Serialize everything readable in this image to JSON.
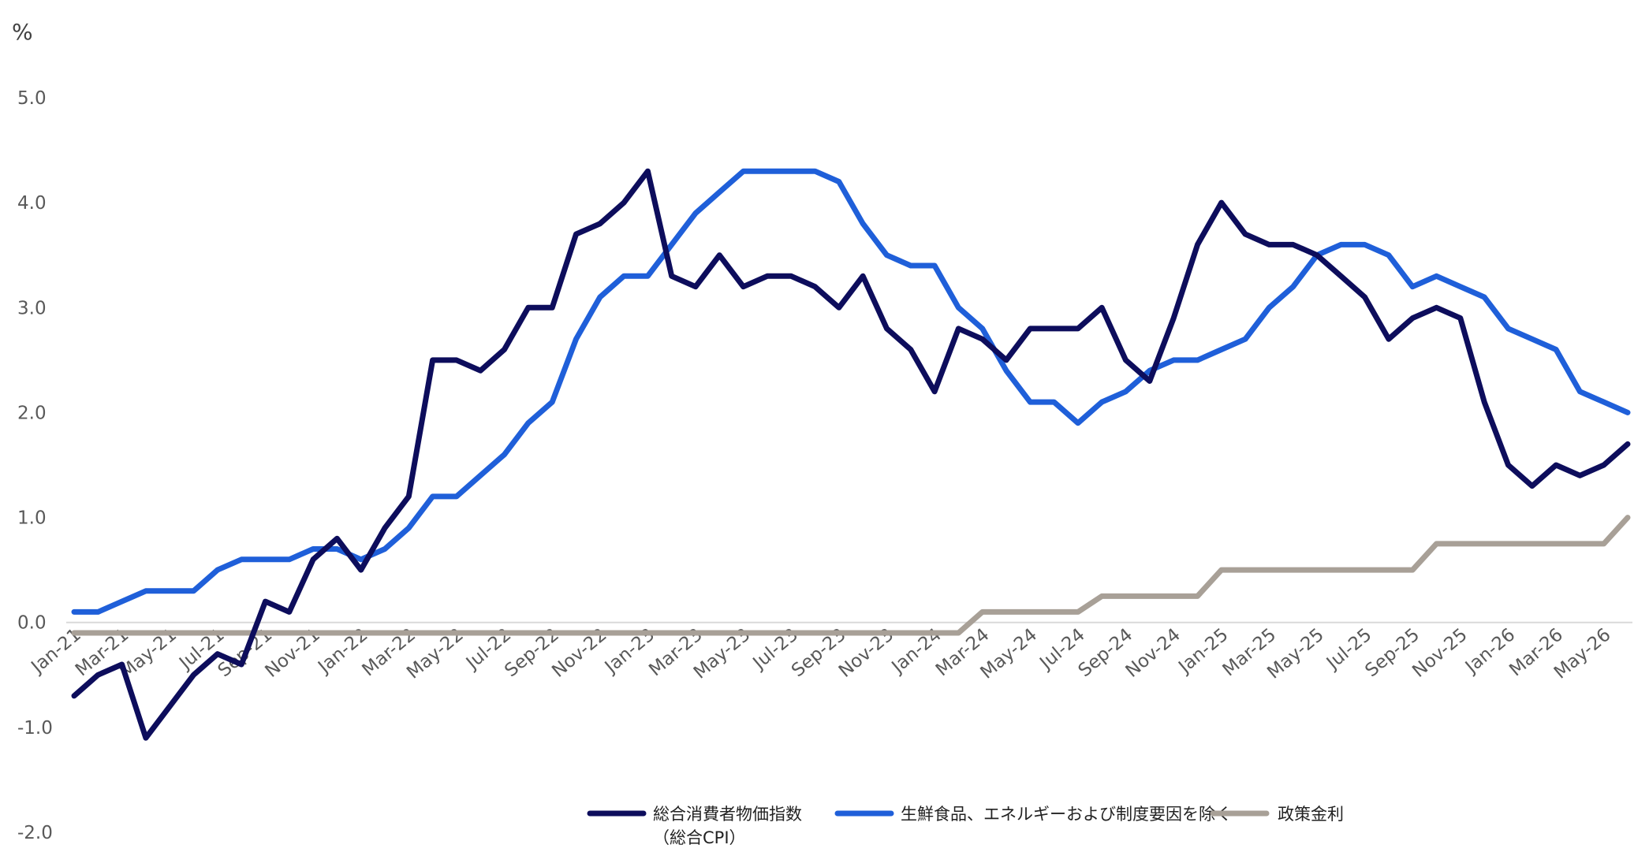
{
  "chart_data": {
    "type": "line",
    "unit_label": "%",
    "ylim": [
      -2.0,
      5.0
    ],
    "yticks": [
      "5.0",
      "4.0",
      "3.0",
      "2.0",
      "1.0",
      "0.0",
      "-1.0",
      "-2.0"
    ],
    "x": [
      "Jan-21",
      "Feb-21",
      "Mar-21",
      "Apr-21",
      "May-21",
      "Jun-21",
      "Jul-21",
      "Aug-21",
      "Sep-21",
      "Oct-21",
      "Nov-21",
      "Dec-21",
      "Jan-22",
      "Feb-22",
      "Mar-22",
      "Apr-22",
      "May-22",
      "Jun-22",
      "Jul-22",
      "Aug-22",
      "Sep-22",
      "Oct-22",
      "Nov-22",
      "Dec-22",
      "Jan-23",
      "Feb-23",
      "Mar-23",
      "Apr-23",
      "May-23",
      "Jun-23",
      "Jul-23",
      "Aug-23",
      "Sep-23",
      "Oct-23",
      "Nov-23",
      "Dec-23",
      "Jan-24",
      "Feb-24",
      "Mar-24",
      "Apr-24",
      "May-24",
      "Jun-24",
      "Jul-24",
      "Aug-24",
      "Sep-24",
      "Oct-24",
      "Nov-24",
      "Dec-24",
      "Jan-25",
      "Feb-25",
      "Mar-25",
      "Apr-25",
      "May-25",
      "Jun-25",
      "Jul-25",
      "Aug-25",
      "Sep-25",
      "Oct-25",
      "Nov-25",
      "Dec-25",
      "Jan-26",
      "Feb-26",
      "Mar-26",
      "Apr-26",
      "May-26",
      "Jun-26"
    ],
    "xtick_labels": [
      "Jan-21",
      "Mar-21",
      "May-21",
      "Jul-21",
      "Sep-21",
      "Nov-21",
      "Jan-22",
      "Mar-22",
      "May-22",
      "Jul-22",
      "Sep-22",
      "Nov-22",
      "Jan-23",
      "Mar-23",
      "May-23",
      "Jul-23",
      "Sep-23",
      "Nov-23",
      "Jan-24",
      "Mar-24",
      "May-24",
      "Jul-24",
      "Sep-24",
      "Nov-24",
      "Jan-25",
      "Mar-25",
      "May-25",
      "Jul-25",
      "Sep-25",
      "Nov-25",
      "Jan-26",
      "Mar-26",
      "May-26"
    ],
    "grid": false,
    "legend_position": "bottom-center",
    "series": [
      {
        "name": "総合消費者物価指数（総合CPI）",
        "legend_lines": [
          "総合消費者物価指数",
          "（総合CPI）"
        ],
        "color": "#0d0d5c",
        "values": [
          -0.7,
          -0.5,
          -0.4,
          -1.1,
          -0.8,
          -0.5,
          -0.3,
          -0.4,
          0.2,
          0.1,
          0.6,
          0.8,
          0.5,
          0.9,
          1.2,
          2.5,
          2.5,
          2.4,
          2.6,
          3.0,
          3.0,
          3.7,
          3.8,
          4.0,
          4.3,
          3.3,
          3.2,
          3.5,
          3.2,
          3.3,
          3.3,
          3.2,
          3.0,
          3.3,
          2.8,
          2.6,
          2.2,
          2.8,
          2.7,
          2.5,
          2.8,
          2.8,
          2.8,
          3.0,
          2.5,
          2.3,
          2.9,
          3.6,
          4.0,
          3.7,
          3.6,
          3.6,
          3.5,
          3.3,
          3.1,
          2.7,
          2.9,
          3.0,
          2.9,
          2.1,
          1.5,
          1.3,
          1.5,
          1.4,
          1.5,
          1.7
        ]
      },
      {
        "name": "生鮮食品、エネルギーおよび制度要因を除く",
        "legend_lines": [
          "生鮮食品、エネルギーおよび制度要因を除く"
        ],
        "color": "#1f5fd9",
        "values": [
          0.1,
          0.1,
          0.2,
          0.3,
          0.3,
          0.3,
          0.5,
          0.6,
          0.6,
          0.6,
          0.7,
          0.7,
          0.6,
          0.7,
          0.9,
          1.2,
          1.2,
          1.4,
          1.6,
          1.9,
          2.1,
          2.7,
          3.1,
          3.3,
          3.3,
          3.6,
          3.9,
          4.1,
          4.3,
          4.3,
          4.3,
          4.3,
          4.2,
          3.8,
          3.5,
          3.4,
          3.4,
          3.0,
          2.8,
          2.4,
          2.1,
          2.1,
          1.9,
          2.1,
          2.2,
          2.4,
          2.5,
          2.5,
          2.6,
          2.7,
          3.0,
          3.2,
          3.5,
          3.6,
          3.6,
          3.5,
          3.2,
          3.3,
          3.2,
          3.1,
          2.8,
          2.7,
          2.6,
          2.2,
          2.1,
          2.0
        ]
      },
      {
        "name": "政策金利",
        "legend_lines": [
          "政策金利"
        ],
        "color": "#a8a097",
        "values": [
          -0.1,
          -0.1,
          -0.1,
          -0.1,
          -0.1,
          -0.1,
          -0.1,
          -0.1,
          -0.1,
          -0.1,
          -0.1,
          -0.1,
          -0.1,
          -0.1,
          -0.1,
          -0.1,
          -0.1,
          -0.1,
          -0.1,
          -0.1,
          -0.1,
          -0.1,
          -0.1,
          -0.1,
          -0.1,
          -0.1,
          -0.1,
          -0.1,
          -0.1,
          -0.1,
          -0.1,
          -0.1,
          -0.1,
          -0.1,
          -0.1,
          -0.1,
          -0.1,
          -0.1,
          0.1,
          0.1,
          0.1,
          0.1,
          0.1,
          0.25,
          0.25,
          0.25,
          0.25,
          0.25,
          0.5,
          0.5,
          0.5,
          0.5,
          0.5,
          0.5,
          0.5,
          0.5,
          0.5,
          0.75,
          0.75,
          0.75,
          0.75,
          0.75,
          0.75,
          0.75,
          0.75,
          1.0
        ]
      }
    ]
  }
}
